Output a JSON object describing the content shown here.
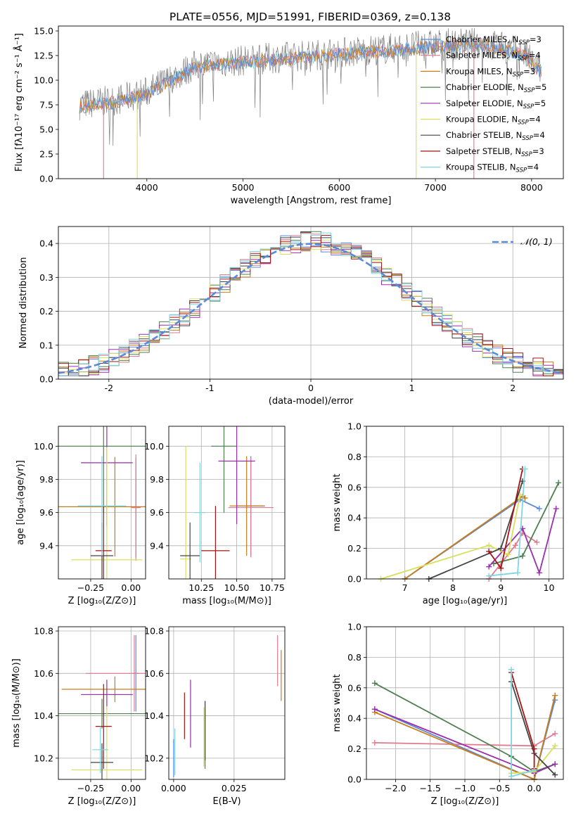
{
  "title": "PLATE=0556, MJD=51991, FIBERID=0369, z=0.138",
  "colors": {
    "series": [
      "#5b8ad8",
      "#e07b8f",
      "#c87d1a",
      "#4f7f4f",
      "#9a2eae",
      "#d8e05a",
      "#444444",
      "#a31515",
      "#7fd6e0"
    ],
    "gauss": "#5b8ad8",
    "gray": "#808080"
  },
  "chart_data": [
    {
      "id": "spectrum",
      "type": "line",
      "xlabel": "wavelength [Angstrom, rest frame]",
      "ylabel": "Flux [fλ10⁻¹⁷ erg cm⁻² s⁻¹ Å⁻¹]",
      "xlim": [
        3080,
        8330
      ],
      "ylim": [
        0,
        15.5
      ],
      "xticks": [
        4000,
        5000,
        6000,
        7000,
        8000
      ],
      "yticks": [
        0.0,
        2.5,
        5.0,
        7.5,
        10.0,
        12.5,
        15.0
      ],
      "legend_position": "upper-right",
      "legend": [
        {
          "label": "Chabrier MILES, N",
          "sub": "SSP",
          "eq": "=3"
        },
        {
          "label": "Salpeter MILES, N",
          "sub": "SSP",
          "eq": "=4"
        },
        {
          "label": "Kroupa MILES, N",
          "sub": "SSP",
          "eq": "=3"
        },
        {
          "label": "Chabrier ELODIE, N",
          "sub": "SSP",
          "eq": "=5"
        },
        {
          "label": "Salpeter ELODIE, N",
          "sub": "SSP",
          "eq": "=5"
        },
        {
          "label": "Kroupa ELODIE, N",
          "sub": "SSP",
          "eq": "=4"
        },
        {
          "label": "Chabrier STELIB, N",
          "sub": "SSP",
          "eq": "=4"
        },
        {
          "label": "Salpeter STELIB, N",
          "sub": "SSP",
          "eq": "=3"
        },
        {
          "label": "Kroupa STELIB, N",
          "sub": "SSP",
          "eq": "=4"
        }
      ],
      "trend": {
        "x": [
          3300,
          3700,
          4000,
          4500,
          5000,
          6000,
          7000,
          7500,
          7900,
          8100
        ],
        "y": [
          7.5,
          8.0,
          8.8,
          11.5,
          12.0,
          12.8,
          13.6,
          13.8,
          12.8,
          11.0
        ]
      },
      "vertical_drops": [
        {
          "x": 3550,
          "color_index": 1
        },
        {
          "x": 3900,
          "color_index": 5
        },
        {
          "x": 6800,
          "color_index": 5
        },
        {
          "x": 7400,
          "color_index": 1
        }
      ]
    },
    {
      "id": "residuals",
      "type": "histogram",
      "xlabel": "(data-model)/error",
      "ylabel": "Normed distribution",
      "xlim": [
        -2.5,
        2.5
      ],
      "ylim": [
        0,
        0.45
      ],
      "xticks": [
        -2,
        -1,
        0,
        1,
        2
      ],
      "yticks": [
        0.0,
        0.1,
        0.2,
        0.3,
        0.4
      ],
      "legend": "𝒩(0, 1)",
      "gaussian": {
        "mu": 0,
        "sigma": 1
      }
    },
    {
      "id": "age_vs_Z",
      "type": "errorbar",
      "xlabel": "Z [log₁₀(Z/Z⊙)]",
      "ylabel": "age  [log₁₀(age/yr)]",
      "xlim": [
        -0.45,
        0.09
      ],
      "ylim": [
        9.2,
        10.12
      ],
      "xticks": [
        -0.25,
        0.0
      ],
      "xticklabels": [
        "−0.25",
        "0.00"
      ],
      "yticks": [
        9.4,
        9.6,
        9.8,
        10.0
      ],
      "points": [
        {
          "x": 0.03,
          "y": 9.63,
          "xerr": 0.02,
          "yerr": 0.3,
          "c": 0
        },
        {
          "x": 0.03,
          "y": 9.63,
          "xerr": 0.03,
          "yerr": 0.32,
          "c": 1
        },
        {
          "x": -0.1,
          "y": 9.635,
          "xerr": 0.36,
          "yerr": 0.3,
          "c": 2
        },
        {
          "x": -0.17,
          "y": 10.0,
          "xerr": 0.37,
          "yerr": 0.4,
          "c": 3
        },
        {
          "x": -0.15,
          "y": 9.9,
          "xerr": 0.16,
          "yerr": 0.38,
          "c": 4
        },
        {
          "x": -0.15,
          "y": 9.315,
          "xerr": 0.22,
          "yerr": 0.68,
          "c": 5
        },
        {
          "x": -0.18,
          "y": 9.34,
          "xerr": 0.07,
          "yerr": 0.2,
          "c": 6
        },
        {
          "x": -0.17,
          "y": 9.37,
          "xerr": 0.05,
          "yerr": 0.27,
          "c": 7
        },
        {
          "x": -0.18,
          "y": 9.64,
          "xerr": 0.15,
          "yerr": 0.3,
          "c": 8
        }
      ]
    },
    {
      "id": "age_vs_mass",
      "type": "errorbar",
      "xlabel": "mass [log₁₀(M/M⊙)]",
      "ylabel": "",
      "xlim": [
        10.02,
        10.84
      ],
      "ylim": [
        9.2,
        10.12
      ],
      "xticks": [
        10.25,
        10.5,
        10.75
      ],
      "xticklabels": [
        "10.25",
        "10.50",
        "10.75"
      ],
      "yticks": [
        9.4,
        9.6,
        9.8,
        10.0
      ],
      "points": [
        {
          "x": 10.6,
          "y": 9.64,
          "xerr": 0.1,
          "yerr": 0.3,
          "c": 0
        },
        {
          "x": 10.6,
          "y": 9.63,
          "xerr": 0.16,
          "yerr": 0.3,
          "c": 1
        },
        {
          "x": 10.57,
          "y": 9.64,
          "xerr": 0.12,
          "yerr": 0.3,
          "c": 2
        },
        {
          "x": 10.41,
          "y": 10.0,
          "xerr": 0.09,
          "yerr": 0.4,
          "c": 3
        },
        {
          "x": 10.5,
          "y": 9.91,
          "xerr": 0.13,
          "yerr": 0.38,
          "c": 4
        },
        {
          "x": 10.14,
          "y": 9.32,
          "xerr": 0.04,
          "yerr": 0.68,
          "c": 5
        },
        {
          "x": 10.17,
          "y": 9.34,
          "xerr": 0.07,
          "yerr": 0.2,
          "c": 6
        },
        {
          "x": 10.35,
          "y": 9.37,
          "xerr": 0.1,
          "yerr": 0.27,
          "c": 7
        },
        {
          "x": 10.24,
          "y": 9.6,
          "xerr": 0.04,
          "yerr": 0.3,
          "c": 8
        }
      ]
    },
    {
      "id": "weight_vs_age",
      "type": "line",
      "xlabel": "age  [log₁₀(age/yr)]",
      "ylabel": "mass weight",
      "xlim": [
        6.2,
        10.3
      ],
      "ylim": [
        0,
        1.0
      ],
      "xticks": [
        7,
        8,
        9,
        10
      ],
      "yticks": [
        0.0,
        0.2,
        0.4,
        0.6,
        0.8,
        1.0
      ],
      "series": [
        {
          "c": 0,
          "x": [
            7.0,
            9.4,
            9.8
          ],
          "y": [
            0.0,
            0.52,
            0.46
          ]
        },
        {
          "c": 1,
          "x": [
            8.75,
            9.3,
            9.45,
            9.75
          ],
          "y": [
            0.0,
            0.22,
            0.3,
            0.24
          ]
        },
        {
          "c": 2,
          "x": [
            7.0,
            9.45,
            9.5
          ],
          "y": [
            0.0,
            0.54,
            0.53
          ]
        },
        {
          "c": 3,
          "x": [
            8.85,
            9.45,
            10.2
          ],
          "y": [
            0.1,
            0.15,
            0.63
          ]
        },
        {
          "c": 4,
          "x": [
            8.75,
            9.45,
            9.8,
            10.15
          ],
          "y": [
            0.08,
            0.33,
            0.04,
            0.46
          ]
        },
        {
          "c": 5,
          "x": [
            6.5,
            8.75,
            9.15,
            9.4
          ],
          "y": [
            0.0,
            0.22,
            0.16,
            0.55
          ]
        },
        {
          "c": 6,
          "x": [
            7.5,
            9.0,
            9.45
          ],
          "y": [
            0.0,
            0.2,
            0.64
          ]
        },
        {
          "c": 7,
          "x": [
            8.75,
            9.0,
            9.45
          ],
          "y": [
            0.18,
            0.07,
            0.72
          ]
        },
        {
          "c": 8,
          "x": [
            8.75,
            9.35,
            9.5
          ],
          "y": [
            0.02,
            0.04,
            0.72
          ]
        }
      ]
    },
    {
      "id": "mass_vs_Z",
      "type": "errorbar",
      "xlabel": "Z [log₁₀(Z/Z⊙)]",
      "ylabel": "mass [log₁₀(M/M⊙)]",
      "xlim": [
        -0.45,
        0.09
      ],
      "ylim": [
        10.1,
        10.82
      ],
      "xticks": [
        -0.25,
        0.0
      ],
      "xticklabels": [
        "−0.25",
        "0.00"
      ],
      "yticks": [
        10.2,
        10.4,
        10.6,
        10.8
      ],
      "points": [
        {
          "x": 0.03,
          "y": 10.6,
          "xerr": 0.02,
          "yerr": 0.18,
          "c": 0
        },
        {
          "x": 0.02,
          "y": 10.6,
          "xerr": 0.3,
          "yerr": 0.18,
          "c": 1
        },
        {
          "x": -0.1,
          "y": 10.525,
          "xerr": 0.33,
          "yerr": 0.06,
          "c": 2
        },
        {
          "x": -0.18,
          "y": 10.41,
          "xerr": 0.27,
          "yerr": 0.07,
          "c": 3
        },
        {
          "x": -0.15,
          "y": 10.5,
          "xerr": 0.16,
          "yerr": 0.07,
          "c": 4
        },
        {
          "x": -0.15,
          "y": 10.145,
          "xerr": 0.22,
          "yerr": 0.3,
          "c": 5
        },
        {
          "x": -0.18,
          "y": 10.18,
          "xerr": 0.07,
          "yerr": 0.09,
          "c": 6
        },
        {
          "x": -0.17,
          "y": 10.35,
          "xerr": 0.05,
          "yerr": 0.2,
          "c": 7
        },
        {
          "x": -0.19,
          "y": 10.24,
          "xerr": 0.05,
          "yerr": 0.11,
          "c": 8
        }
      ]
    },
    {
      "id": "mass_vs_ebv",
      "type": "errorbar",
      "xlabel": "E(B-V)",
      "ylabel": "",
      "xlim": [
        -0.002,
        0.046
      ],
      "ylim": [
        10.1,
        10.82
      ],
      "xticks": [
        0.0,
        0.025
      ],
      "xticklabels": [
        "0.000",
        "0.025"
      ],
      "yticks": [
        10.2,
        10.4,
        10.6,
        10.8
      ],
      "points": [
        {
          "x": 0.0,
          "y": 10.2,
          "xerr": 0,
          "yerr": 0.09,
          "c": 0
        },
        {
          "x": 0.043,
          "y": 10.66,
          "xerr": 0,
          "yerr": 0.12,
          "c": 1
        },
        {
          "x": 0.0445,
          "y": 10.59,
          "xerr": 0,
          "yerr": 0.12,
          "c": 2
        },
        {
          "x": 0.013,
          "y": 10.31,
          "xerr": 0,
          "yerr": 0.16,
          "c": 3
        },
        {
          "x": 0.007,
          "y": 10.41,
          "xerr": 0,
          "yerr": 0.16,
          "c": 4
        },
        {
          "x": 0.0125,
          "y": 10.3,
          "xerr": 0,
          "yerr": 0.14,
          "c": 5
        },
        {
          "x": 0.013,
          "y": 10.33,
          "xerr": 0,
          "yerr": 0.14,
          "c": 6
        },
        {
          "x": 0.0045,
          "y": 10.4,
          "xerr": 0,
          "yerr": 0.11,
          "c": 7
        },
        {
          "x": 0.0005,
          "y": 10.23,
          "xerr": 0,
          "yerr": 0.11,
          "c": 8
        }
      ]
    },
    {
      "id": "weight_vs_Z",
      "type": "line",
      "xlabel": "Z [log₁₀(Z/Z⊙)]",
      "ylabel": "mass weight",
      "xlim": [
        -2.42,
        0.42
      ],
      "ylim": [
        0,
        1.0
      ],
      "xticks": [
        -2.0,
        -1.5,
        -1.0,
        -0.5,
        0.0
      ],
      "xticklabels": [
        "−2.0",
        "−1.5",
        "−1.0",
        "−0.5",
        "0.0"
      ],
      "yticks": [
        0.0,
        0.2,
        0.4,
        0.6,
        0.8,
        1.0
      ],
      "series": [
        {
          "c": 0,
          "x": [
            -2.3,
            0.0,
            0.3
          ],
          "y": [
            0.46,
            0.0,
            0.52
          ]
        },
        {
          "c": 1,
          "x": [
            -2.3,
            0.0,
            0.3
          ],
          "y": [
            0.24,
            0.22,
            0.3
          ]
        },
        {
          "c": 2,
          "x": [
            -2.3,
            0.0,
            0.3
          ],
          "y": [
            0.44,
            0.0,
            0.55
          ]
        },
        {
          "c": 3,
          "x": [
            -2.3,
            -0.33,
            0.0,
            0.3
          ],
          "y": [
            0.63,
            0.15,
            0.05,
            0.1
          ]
        },
        {
          "c": 4,
          "x": [
            -2.3,
            0.0,
            0.3
          ],
          "y": [
            0.46,
            0.04,
            0.1
          ]
        },
        {
          "c": 5,
          "x": [
            -0.33,
            0.0,
            0.3
          ],
          "y": [
            0.04,
            0.05,
            0.22
          ]
        },
        {
          "c": 6,
          "x": [
            -0.33,
            0.0,
            0.3
          ],
          "y": [
            0.64,
            0.17,
            0.03
          ]
        },
        {
          "c": 7,
          "x": [
            -0.33,
            0.0,
            0.0
          ],
          "y": [
            0.7,
            0.2,
            0.07
          ]
        },
        {
          "c": 8,
          "x": [
            -0.33,
            -0.33,
            0.0
          ],
          "y": [
            0.72,
            0.02,
            0.06
          ]
        }
      ]
    }
  ]
}
